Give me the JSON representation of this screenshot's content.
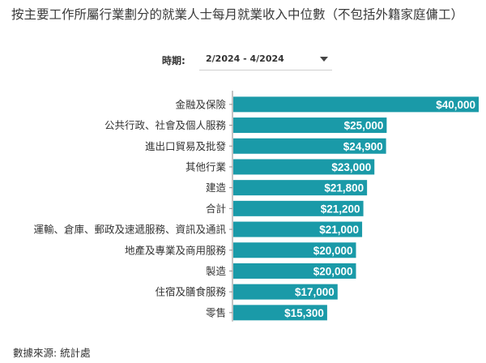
{
  "title": "按主要工作所屬行業劃分的就業人士每月就業收入中位數（不包括外籍家庭傭工）",
  "filter": {
    "label": "時期:",
    "value": "2/2024 - 4/2024",
    "dropdown_icon": "chevron-down-icon"
  },
  "source": "數據來源:  統計處",
  "colors": {
    "bar": "#1a9aa8",
    "bar_label": "#ffffff",
    "axis": "#8a8a8a"
  },
  "chart_data": {
    "type": "bar",
    "orientation": "horizontal",
    "title": "",
    "xlabel": "",
    "ylabel": "",
    "xlim": [
      0,
      40000
    ],
    "grid": false,
    "categories": [
      "金融及保險",
      "公共行政、社會及個人服務",
      "進出口貿易及批發",
      "其他行業",
      "建造",
      "合計",
      "運輸、倉庫、郵政及速遞服務、資訊及通訊",
      "地產及專業及商用服務",
      "製造",
      "住宿及膳食服務",
      "零售"
    ],
    "values": [
      40000,
      25000,
      24900,
      23000,
      21800,
      21200,
      21000,
      20000,
      20000,
      17000,
      15300
    ],
    "value_labels": [
      "$40,000",
      "$25,000",
      "$24,900",
      "$23,000",
      "$21,800",
      "$21,200",
      "$21,000",
      "$20,000",
      "$20,000",
      "$17,000",
      "$15,300"
    ]
  }
}
